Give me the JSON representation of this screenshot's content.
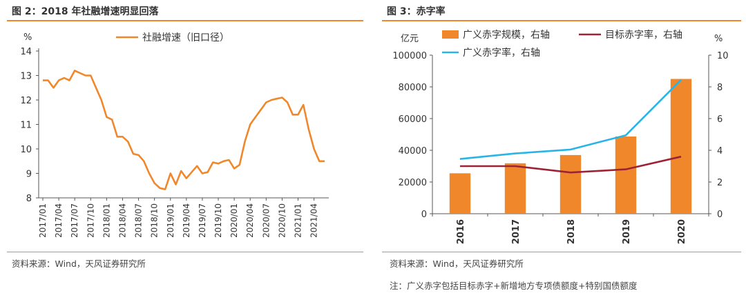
{
  "left": {
    "title": "图 2：2018 年社融增速明显回落",
    "source": "资料来源：Wind，天风证券研究所"
  },
  "right": {
    "title": "图 3：赤字率",
    "source": "资料来源：Wind，天风证券研究所",
    "note": "注：广义赤字包括目标赤字+新增地方专项债额度+特别国债额度"
  },
  "chart_data": [
    {
      "type": "line",
      "title": "",
      "ylabel": "%",
      "ylim": [
        8,
        14
      ],
      "yticks": [
        8,
        9,
        10,
        11,
        12,
        13,
        14
      ],
      "grid": false,
      "legend_position": "top-center",
      "tick_labels": [
        "2017/01",
        "2017/04",
        "2017/07",
        "2017/10",
        "2018/01",
        "2018/04",
        "2018/07",
        "2018/10",
        "2019/01",
        "2019/04",
        "2019/07",
        "2019/10",
        "2020/01",
        "2020/04",
        "2020/07",
        "2020/10",
        "2021/01",
        "2021/04"
      ],
      "series": [
        {
          "name": "社融增速（旧口径）",
          "color": "#f0882b",
          "x": [
            "2017/01",
            "2017/02",
            "2017/03",
            "2017/04",
            "2017/05",
            "2017/06",
            "2017/07",
            "2017/08",
            "2017/09",
            "2017/10",
            "2017/11",
            "2017/12",
            "2018/01",
            "2018/02",
            "2018/03",
            "2018/04",
            "2018/05",
            "2018/06",
            "2018/07",
            "2018/08",
            "2018/09",
            "2018/10",
            "2018/11",
            "2018/12",
            "2019/01",
            "2019/02",
            "2019/03",
            "2019/04",
            "2019/05",
            "2019/06",
            "2019/07",
            "2019/08",
            "2019/09",
            "2019/10",
            "2019/11",
            "2019/12",
            "2020/01",
            "2020/02",
            "2020/03",
            "2020/04",
            "2020/05",
            "2020/06",
            "2020/07",
            "2020/08",
            "2020/09",
            "2020/10",
            "2020/11",
            "2020/12",
            "2021/01",
            "2021/02",
            "2021/03",
            "2021/04",
            "2021/05",
            "2021/06"
          ],
          "values": [
            12.8,
            12.8,
            12.5,
            12.8,
            12.9,
            12.8,
            13.2,
            13.1,
            13.0,
            13.0,
            12.5,
            12.0,
            11.3,
            11.2,
            10.5,
            10.5,
            10.3,
            9.8,
            9.75,
            9.5,
            9.0,
            8.6,
            8.4,
            8.35,
            9.0,
            8.55,
            9.1,
            8.8,
            9.05,
            9.3,
            9.0,
            9.05,
            9.45,
            9.4,
            9.5,
            9.55,
            9.2,
            9.35,
            10.3,
            11.0,
            11.3,
            11.6,
            11.9,
            12.0,
            12.05,
            12.1,
            11.9,
            11.4,
            11.4,
            11.8,
            10.8,
            10.0,
            9.5,
            9.5
          ]
        }
      ]
    },
    {
      "type": "bar+line",
      "title": "",
      "categories": [
        "2016",
        "2017",
        "2018",
        "2019",
        "2020"
      ],
      "ylabel_left": "亿元",
      "ylabel_right": "%",
      "ylim_left": [
        0,
        100000
      ],
      "yticks_left": [
        0,
        20000,
        40000,
        60000,
        80000,
        100000
      ],
      "ylim_right": [
        0,
        10
      ],
      "yticks_right": [
        0,
        2,
        4,
        6,
        8,
        10
      ],
      "grid": false,
      "legend_position": "top",
      "series": [
        {
          "name": "广义赤字规模，右轴",
          "type": "bar",
          "axis": "left",
          "color": "#f0882b",
          "values": [
            25500,
            31800,
            37000,
            48700,
            85000
          ]
        },
        {
          "name": "目标赤字率，右轴",
          "type": "line",
          "axis": "right",
          "color": "#9b2335",
          "values": [
            3.0,
            3.0,
            2.6,
            2.8,
            3.6
          ]
        },
        {
          "name": "广义赤字率，右轴",
          "type": "line",
          "axis": "right",
          "color": "#27b4e6",
          "values": [
            3.45,
            3.8,
            4.05,
            4.95,
            8.45
          ]
        }
      ]
    }
  ]
}
